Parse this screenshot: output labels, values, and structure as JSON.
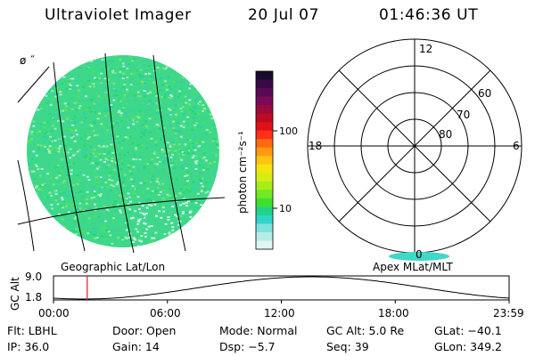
{
  "header": {
    "instrument": "Ultraviolet Imager",
    "date": "20 Jul 07",
    "time": "01:46:36 UT"
  },
  "colorbar": {
    "units_label": "photon cm⁻²s⁻¹",
    "tick_labels": [
      "100",
      "10"
    ],
    "colors": [
      "#1a0a2e",
      "#3a0a44",
      "#5a0a55",
      "#7a0a55",
      "#9a0a3a",
      "#c00a22",
      "#e0101a",
      "#ff3018",
      "#ff6a10",
      "#ff9a10",
      "#ffc310",
      "#f5e410",
      "#d4ee14",
      "#a6ee18",
      "#70ea22",
      "#3ee030",
      "#22d28a",
      "#30d4c8",
      "#7ee2dc",
      "#b6ece6",
      "#dff6f2"
    ]
  },
  "polar_plot": {
    "mlt_labels": {
      "top": "12",
      "left": "18",
      "right": "6",
      "bottom": "0"
    },
    "lat_labels": [
      "60",
      "70",
      "80"
    ]
  },
  "map": {
    "glyph_label": "ø ˝"
  },
  "timeline": {
    "left_title": "Geographic Lat/Lon",
    "right_title": "Apex MLat/MLT",
    "axis_label": "GC Alt",
    "y_top": "9.0",
    "y_bottom": "1.8",
    "x_ticks": [
      "00:00",
      "06:00",
      "12:00",
      "18:00",
      "23:59"
    ],
    "marker_time_fraction": 0.074
  },
  "status": {
    "filter": "Flt: LBHL",
    "door": "Door: Open",
    "mode": "Mode: Normal",
    "gc_alt": "GC Alt: 5.0 Re",
    "glat": "GLat: −40.1",
    "ip": "IP: 36.0",
    "gain": "Gain: 14",
    "dsp": "Dsp:   −5.7",
    "seq": "Seq: 39",
    "glon": "GLon: 349.2"
  }
}
